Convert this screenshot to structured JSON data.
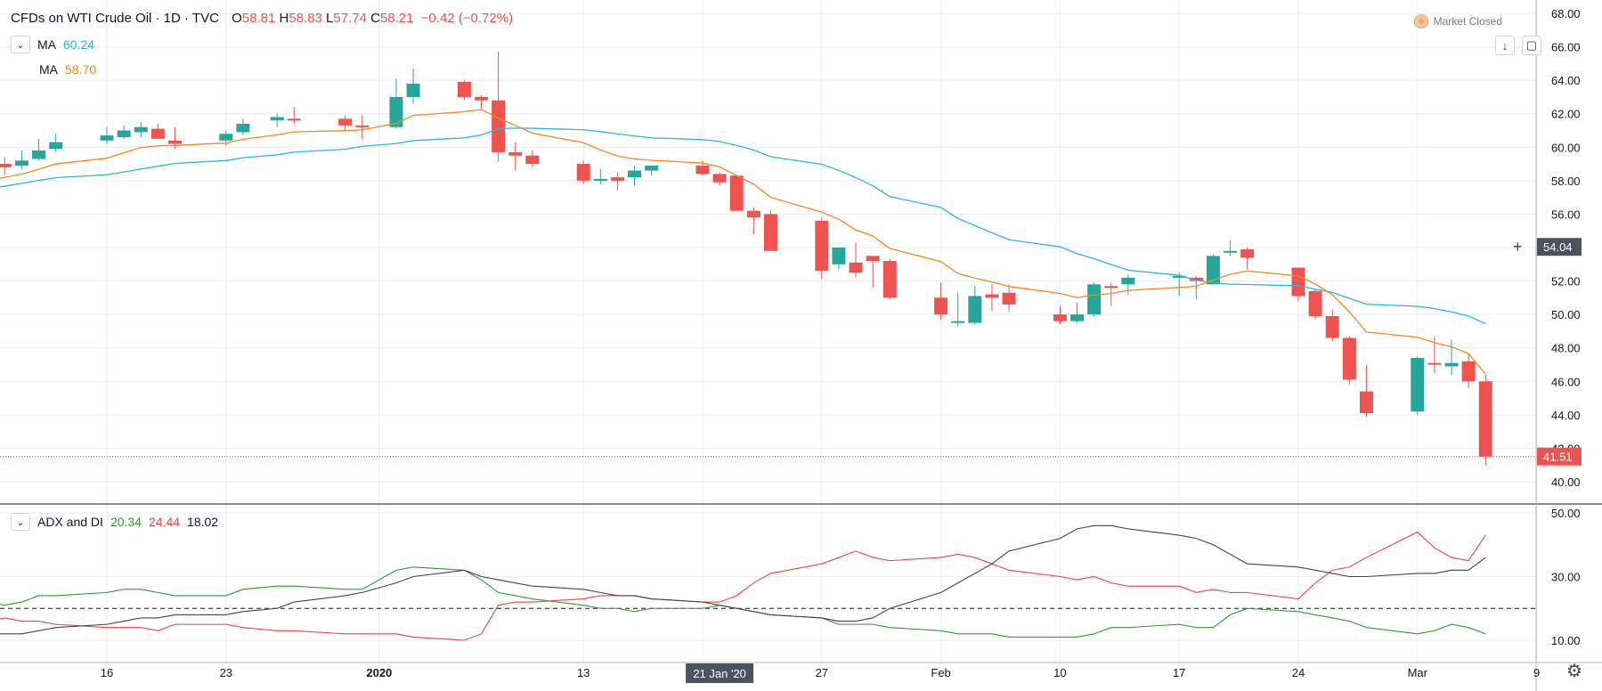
{
  "header": {
    "symbol": "CFDs on WTI Crude Oil · 1D · TVC",
    "open_label": "O",
    "open": "58.81",
    "high_label": "H",
    "high": "58.83",
    "low_label": "L",
    "low": "57.74",
    "close_label": "C",
    "close": "58.21",
    "change": "−0.42 (−0.72%)",
    "market_status": "Market Closed"
  },
  "legend": {
    "ma1_label": "MA",
    "ma1_value": "60.24",
    "ma1_color": "#2bb7d6",
    "ma2_label": "MA",
    "ma2_value": "58.70",
    "ma2_color": "#f08a24",
    "adx_label": "ADX and DI",
    "di_plus": "20.34",
    "di_minus": "24.44",
    "adx": "18.02",
    "di_plus_color": "#2e9b2e",
    "di_minus_color": "#e84545",
    "adx_color": "#444444"
  },
  "colors": {
    "up": "#26a69a",
    "down": "#ef5350",
    "grid": "#e9ecf1",
    "price_line": "#ef5350"
  },
  "price_axis": {
    "ticks": [
      "68.00",
      "66.00",
      "64.00",
      "62.00",
      "60.00",
      "58.00",
      "56.00",
      "54.00",
      "52.00",
      "50.00",
      "48.00",
      "46.00",
      "44.00",
      "42.00",
      "40.00"
    ],
    "crosshair_label": "54.04",
    "last_price_label": "41.51"
  },
  "adx_axis": {
    "ticks": [
      "50.00",
      "30.00",
      "10.00"
    ]
  },
  "time_axis": {
    "labels": [
      "16",
      "23",
      "2020",
      "13",
      "27",
      "Feb",
      "10",
      "17",
      "24",
      "Mar",
      "9"
    ],
    "crosshair_label": "21 Jan '20"
  },
  "chart_data": [
    {
      "type": "candlestick",
      "title": "CFDs on WTI Crude Oil · 1D · TVC",
      "ylim": [
        39,
        68.5
      ],
      "x": [
        "2019-12-09",
        "2019-12-10",
        "2019-12-11",
        "2019-12-12",
        "2019-12-13",
        "2019-12-16",
        "2019-12-17",
        "2019-12-18",
        "2019-12-19",
        "2019-12-20",
        "2019-12-23",
        "2019-12-24",
        "2019-12-26",
        "2019-12-27",
        "2019-12-30",
        "2019-12-31",
        "2020-01-02",
        "2020-01-03",
        "2020-01-06",
        "2020-01-07",
        "2020-01-08",
        "2020-01-09",
        "2020-01-10",
        "2020-01-13",
        "2020-01-14",
        "2020-01-15",
        "2020-01-16",
        "2020-01-17",
        "2020-01-20",
        "2020-01-21",
        "2020-01-22",
        "2020-01-23",
        "2020-01-24",
        "2020-01-27",
        "2020-01-28",
        "2020-01-29",
        "2020-01-30",
        "2020-01-31",
        "2020-02-03",
        "2020-02-04",
        "2020-02-05",
        "2020-02-06",
        "2020-02-07",
        "2020-02-10",
        "2020-02-11",
        "2020-02-12",
        "2020-02-13",
        "2020-02-14",
        "2020-02-17",
        "2020-02-18",
        "2020-02-19",
        "2020-02-20",
        "2020-02-21",
        "2020-02-24",
        "2020-02-25",
        "2020-02-26",
        "2020-02-27",
        "2020-02-28",
        "2020-03-02",
        "2020-03-03",
        "2020-03-04",
        "2020-03-05",
        "2020-03-06"
      ],
      "open": [
        58.9,
        59.0,
        58.9,
        59.3,
        59.9,
        60.4,
        60.6,
        60.9,
        61.1,
        60.4,
        60.4,
        60.9,
        61.6,
        61.7,
        61.7,
        61.3,
        61.2,
        63.0,
        63.9,
        63.0,
        62.8,
        59.7,
        59.5,
        59.0,
        58.1,
        58.2,
        58.2,
        58.6,
        58.9,
        58.4,
        58.3,
        56.2,
        56.0,
        55.6,
        53.0,
        53.1,
        53.5,
        53.2,
        51.0,
        49.5,
        49.5,
        51.2,
        51.3,
        50.0,
        49.6,
        50.0,
        51.7,
        51.8,
        52.3,
        52.2,
        51.8,
        53.8,
        53.9,
        52.8,
        51.4,
        49.9,
        48.6,
        45.4,
        44.2,
        47.1,
        46.9,
        47.2,
        46.0
      ],
      "close": [
        59.0,
        58.8,
        59.2,
        59.8,
        60.3,
        60.7,
        61.0,
        61.2,
        60.5,
        60.2,
        60.8,
        61.4,
        61.8,
        61.6,
        61.3,
        61.2,
        63.0,
        63.8,
        63.0,
        62.8,
        59.7,
        59.5,
        59.0,
        58.0,
        58.1,
        58.0,
        58.6,
        58.9,
        58.4,
        57.9,
        56.2,
        55.8,
        53.8,
        52.6,
        54.0,
        52.5,
        53.2,
        51.0,
        50.0,
        49.6,
        51.1,
        51.0,
        50.6,
        49.6,
        50.0,
        51.8,
        51.6,
        52.2,
        52.3,
        52.0,
        53.5,
        53.8,
        53.4,
        51.1,
        49.9,
        48.6,
        46.1,
        44.1,
        47.4,
        47.0,
        47.1,
        46.0,
        41.5
      ],
      "high": [
        59.5,
        59.4,
        59.8,
        60.5,
        60.8,
        61.2,
        61.3,
        61.5,
        61.4,
        61.2,
        61.0,
        61.7,
        62.0,
        62.4,
        61.9,
        61.9,
        64.1,
        64.7,
        64.0,
        63.1,
        65.7,
        60.3,
        59.8,
        59.2,
        58.7,
        58.5,
        58.9,
        58.9,
        59.2,
        58.5,
        58.3,
        56.4,
        56.2,
        55.8,
        54.0,
        54.3,
        53.5,
        53.3,
        51.9,
        51.3,
        51.7,
        51.8,
        51.8,
        50.5,
        50.7,
        51.9,
        51.9,
        52.4,
        52.5,
        52.3,
        53.6,
        54.4,
        54.0,
        52.8,
        51.5,
        50.3,
        48.7,
        47.0,
        47.5,
        48.7,
        48.5,
        47.6,
        46.4
      ],
      "low": [
        58.6,
        58.3,
        58.7,
        59.2,
        59.7,
        60.2,
        60.5,
        60.6,
        60.6,
        59.9,
        60.1,
        60.7,
        61.2,
        61.4,
        61.0,
        60.5,
        61.1,
        62.6,
        62.8,
        62.3,
        59.1,
        58.6,
        58.8,
        57.8,
        57.8,
        57.4,
        57.7,
        58.3,
        58.3,
        57.7,
        56.2,
        54.8,
        53.8,
        52.1,
        52.7,
        52.2,
        51.6,
        50.9,
        49.7,
        49.3,
        49.4,
        50.2,
        50.2,
        49.4,
        49.5,
        49.9,
        50.5,
        51.2,
        51.1,
        50.9,
        51.8,
        53.5,
        52.7,
        50.8,
        49.7,
        48.4,
        45.8,
        43.9,
        44.0,
        46.5,
        46.4,
        45.6,
        41.0
      ]
    },
    {
      "type": "line",
      "title": "ADX and DI",
      "ylim": [
        5,
        50
      ],
      "x": [
        "2019-12-09",
        "2019-12-10",
        "2019-12-11",
        "2019-12-12",
        "2019-12-13",
        "2019-12-16",
        "2019-12-17",
        "2019-12-18",
        "2019-12-19",
        "2019-12-20",
        "2019-12-23",
        "2019-12-24",
        "2019-12-26",
        "2019-12-27",
        "2019-12-30",
        "2019-12-31",
        "2020-01-02",
        "2020-01-03",
        "2020-01-06",
        "2020-01-07",
        "2020-01-08",
        "2020-01-09",
        "2020-01-10",
        "2020-01-13",
        "2020-01-14",
        "2020-01-15",
        "2020-01-16",
        "2020-01-17",
        "2020-01-20",
        "2020-01-21",
        "2020-01-22",
        "2020-01-23",
        "2020-01-24",
        "2020-01-27",
        "2020-01-28",
        "2020-01-29",
        "2020-01-30",
        "2020-01-31",
        "2020-02-03",
        "2020-02-04",
        "2020-02-05",
        "2020-02-06",
        "2020-02-07",
        "2020-02-10",
        "2020-02-11",
        "2020-02-12",
        "2020-02-13",
        "2020-02-14",
        "2020-02-17",
        "2020-02-18",
        "2020-02-19",
        "2020-02-20",
        "2020-02-21",
        "2020-02-24",
        "2020-02-25",
        "2020-02-26",
        "2020-02-27",
        "2020-02-28",
        "2020-03-02",
        "2020-03-03",
        "2020-03-04",
        "2020-03-05",
        "2020-03-06"
      ],
      "reference_line": 20,
      "series": [
        {
          "name": "+DI",
          "values": [
            22,
            21,
            22,
            24,
            24,
            25,
            26,
            26,
            25,
            24,
            24,
            26,
            27,
            27,
            26,
            26,
            32,
            33,
            32,
            29,
            25,
            24,
            23,
            21,
            20,
            20,
            19,
            20,
            20,
            21,
            20,
            19,
            18,
            17,
            15,
            15,
            15,
            14,
            13,
            12,
            12,
            12,
            11,
            11,
            11,
            12,
            14,
            14,
            15,
            14,
            14,
            18,
            20,
            19,
            18,
            17,
            16,
            14,
            12,
            13,
            15,
            14,
            12
          ]
        },
        {
          "name": "−DI",
          "values": [
            16,
            17,
            16,
            16,
            15,
            14,
            14,
            14,
            13,
            15,
            15,
            14,
            13,
            13,
            12,
            12,
            12,
            11,
            10,
            12,
            21,
            22,
            22,
            23,
            24,
            24,
            24,
            23,
            22,
            22,
            24,
            28,
            31,
            34,
            36,
            38,
            36,
            35,
            36,
            37,
            36,
            34,
            32,
            30,
            29,
            30,
            28,
            27,
            27,
            25,
            26,
            25,
            25,
            23,
            28,
            32,
            33,
            36,
            44,
            39,
            36,
            35,
            43
          ]
        },
        {
          "name": "ADX",
          "values": [
            12,
            12,
            12,
            13,
            14,
            15,
            16,
            17,
            17,
            18,
            18,
            19,
            20,
            22,
            24,
            25,
            28,
            30,
            32,
            30,
            29,
            28,
            27,
            26,
            25,
            24,
            24,
            23,
            22,
            21,
            20,
            19,
            18,
            17,
            16,
            16,
            17,
            20,
            25,
            28,
            31,
            34,
            38,
            42,
            45,
            46,
            46,
            45,
            43,
            42,
            40,
            37,
            34,
            33,
            32,
            31,
            30,
            30,
            31,
            31,
            32,
            32,
            36
          ]
        }
      ]
    }
  ]
}
